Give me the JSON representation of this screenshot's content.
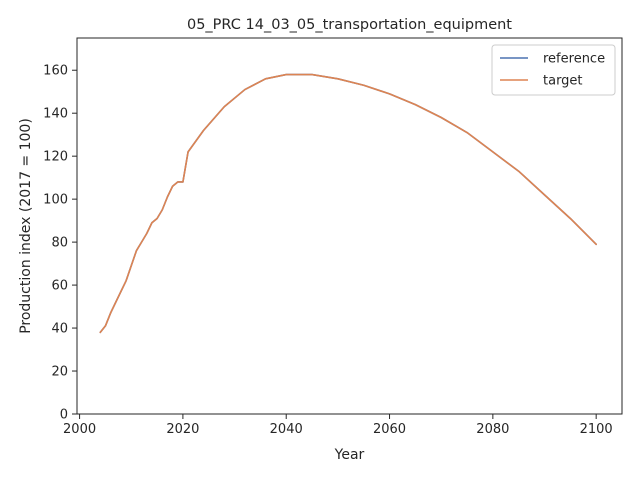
{
  "chart_data": {
    "type": "line",
    "title": "05_PRC 14_03_05_transportation_equipment",
    "xlabel": "Year",
    "ylabel": "Production index (2017 = 100)",
    "xlim": [
      1999.5,
      2105
    ],
    "ylim": [
      0,
      175
    ],
    "xticks": [
      2000,
      2020,
      2040,
      2060,
      2080,
      2100
    ],
    "yticks": [
      0,
      20,
      40,
      60,
      80,
      100,
      120,
      140,
      160
    ],
    "grid": false,
    "legend": "top-right",
    "series": [
      {
        "name": "reference",
        "color": "#4c72b0",
        "x": [
          2004,
          2005,
          2006,
          2007,
          2008,
          2009,
          2010,
          2011,
          2012,
          2013,
          2014,
          2015,
          2016,
          2017,
          2018,
          2019,
          2020,
          2021,
          2024,
          2028,
          2032,
          2036,
          2040,
          2045,
          2050,
          2055,
          2060,
          2065,
          2070,
          2075,
          2080,
          2085,
          2090,
          2095,
          2100
        ],
        "y": [
          38,
          41,
          47,
          52,
          57,
          62,
          69,
          76,
          80,
          84,
          89,
          91,
          95,
          101,
          106,
          108,
          108,
          122,
          132,
          143,
          151,
          156,
          158,
          158,
          156,
          153,
          149,
          144,
          138,
          131,
          122,
          113,
          102,
          91,
          79
        ]
      },
      {
        "name": "target",
        "color": "#dd8452",
        "x": [
          2004,
          2005,
          2006,
          2007,
          2008,
          2009,
          2010,
          2011,
          2012,
          2013,
          2014,
          2015,
          2016,
          2017,
          2018,
          2019,
          2020,
          2021,
          2024,
          2028,
          2032,
          2036,
          2040,
          2045,
          2050,
          2055,
          2060,
          2065,
          2070,
          2075,
          2080,
          2085,
          2090,
          2095,
          2100
        ],
        "y": [
          38,
          41,
          47,
          52,
          57,
          62,
          69,
          76,
          80,
          84,
          89,
          91,
          95,
          101,
          106,
          108,
          108,
          122,
          132,
          143,
          151,
          156,
          158,
          158,
          156,
          153,
          149,
          144,
          138,
          131,
          122,
          113,
          102,
          91,
          79
        ]
      }
    ]
  }
}
